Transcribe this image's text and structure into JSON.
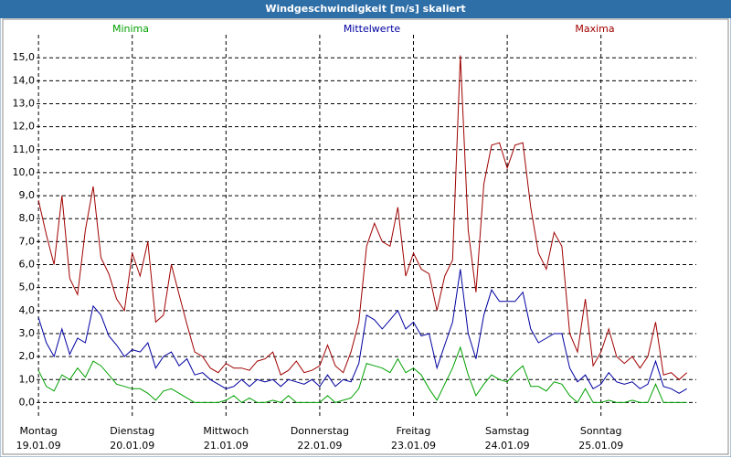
{
  "chart_data": {
    "type": "line",
    "title": "Windgeschwindigkeit [m/s] skaliert",
    "x": [
      0,
      2,
      4,
      6,
      8,
      10,
      12,
      14,
      16,
      18,
      20,
      22,
      24,
      26,
      28,
      30,
      32,
      34,
      36,
      38,
      40,
      42,
      44,
      46,
      48,
      50,
      52,
      54,
      56,
      58,
      60,
      62,
      64,
      66,
      68,
      70,
      72,
      74,
      76,
      78,
      80,
      82,
      84,
      86,
      88,
      90,
      92,
      94,
      96,
      98,
      100,
      102,
      104,
      106,
      108,
      110,
      112,
      114,
      116,
      118,
      120,
      122,
      124,
      126,
      128,
      130,
      132,
      134,
      136,
      138,
      140,
      142,
      144,
      146,
      148,
      150,
      152,
      154,
      156,
      158,
      160,
      162,
      164,
      166
    ],
    "series": [
      {
        "name": "Minima",
        "color": "#00a000",
        "values": [
          1.4,
          0.7,
          0.5,
          1.2,
          1.0,
          1.5,
          1.1,
          1.8,
          1.6,
          1.2,
          0.8,
          0.7,
          0.6,
          0.6,
          0.4,
          0.1,
          0.5,
          0.6,
          0.4,
          0.2,
          0.0,
          0.0,
          0.0,
          0.0,
          0.1,
          0.3,
          0.0,
          0.2,
          0.0,
          0.0,
          0.1,
          0.0,
          0.3,
          0.0,
          0.0,
          0.0,
          0.0,
          0.3,
          0.0,
          0.1,
          0.2,
          0.6,
          1.7,
          1.6,
          1.5,
          1.3,
          1.9,
          1.3,
          1.5,
          1.2,
          0.6,
          0.1,
          0.8,
          1.5,
          2.4,
          1.2,
          0.3,
          0.8,
          1.2,
          1.0,
          0.9,
          1.3,
          1.6,
          0.7,
          0.7,
          0.5,
          0.9,
          0.8,
          0.3,
          0.0,
          0.6,
          0.0,
          0.0,
          0.1,
          0.0,
          0.0,
          0.1,
          0.0,
          0.0,
          0.8,
          0.0,
          0.0,
          0.0,
          0.0
        ]
      },
      {
        "name": "Mittelwerte",
        "color": "#0000a0",
        "values": [
          3.7,
          2.6,
          2.0,
          3.2,
          2.1,
          2.8,
          2.6,
          4.2,
          3.8,
          2.9,
          2.5,
          2.0,
          2.3,
          2.2,
          2.6,
          1.5,
          2.0,
          2.2,
          1.6,
          1.9,
          1.2,
          1.3,
          1.0,
          0.8,
          0.6,
          0.7,
          1.0,
          0.7,
          1.0,
          0.9,
          1.0,
          0.7,
          1.0,
          0.9,
          0.8,
          1.0,
          0.7,
          1.2,
          0.7,
          1.0,
          0.9,
          1.7,
          3.8,
          3.6,
          3.2,
          3.6,
          4.0,
          3.2,
          3.5,
          2.9,
          3.0,
          1.5,
          2.5,
          3.5,
          5.8,
          3.0,
          1.9,
          3.8,
          4.9,
          4.4,
          4.4,
          4.4,
          4.8,
          3.2,
          2.6,
          2.8,
          3.0,
          3.0,
          1.5,
          0.9,
          1.2,
          0.6,
          0.8,
          1.3,
          0.9,
          0.8,
          0.9,
          0.6,
          0.8,
          1.8,
          0.7,
          0.6,
          0.4,
          0.6
        ]
      },
      {
        "name": "Maxima",
        "color": "#a00000",
        "values": [
          8.8,
          7.3,
          6.0,
          9.0,
          5.4,
          4.7,
          7.5,
          9.4,
          6.3,
          5.6,
          4.5,
          4.0,
          6.5,
          5.5,
          7.0,
          3.5,
          3.8,
          6.0,
          4.7,
          3.4,
          2.2,
          2.0,
          1.5,
          1.3,
          1.7,
          1.5,
          1.5,
          1.4,
          1.8,
          1.9,
          2.2,
          1.2,
          1.4,
          1.8,
          1.3,
          1.4,
          1.6,
          2.5,
          1.6,
          1.3,
          2.2,
          3.5,
          6.8,
          7.8,
          7.0,
          6.8,
          8.5,
          5.5,
          6.5,
          5.8,
          5.6,
          4.0,
          5.5,
          6.2,
          15.1,
          7.5,
          4.8,
          9.5,
          11.2,
          11.3,
          10.2,
          11.2,
          11.3,
          8.5,
          6.5,
          5.8,
          7.4,
          6.8,
          3.0,
          2.2,
          4.5,
          1.6,
          2.2,
          3.2,
          2.0,
          1.7,
          2.0,
          1.5,
          2.0,
          3.5,
          1.2,
          1.3,
          1.0,
          1.3
        ]
      }
    ],
    "xlim": [
      -0.5,
      168.4
    ],
    "xticks": [
      {
        "value": 0,
        "label": "Montag",
        "date": "19.01.09"
      },
      {
        "value": 24,
        "label": "Dienstag",
        "date": "20.01.09"
      },
      {
        "value": 48,
        "label": "Mittwoch",
        "date": "21.01.09"
      },
      {
        "value": 72,
        "label": "Donnerstag",
        "date": "22.01.09"
      },
      {
        "value": 96,
        "label": "Freitag",
        "date": "23.01.09"
      },
      {
        "value": 120,
        "label": "Samstag",
        "date": "24.01.09"
      },
      {
        "value": 144,
        "label": "Sonntag",
        "date": "25.01.09"
      }
    ],
    "ylim": [
      -0.7,
      16.4
    ],
    "yticks": [
      {
        "value": 0,
        "label": "0,0"
      },
      {
        "value": 1,
        "label": "1,0"
      },
      {
        "value": 2,
        "label": "2,0"
      },
      {
        "value": 3,
        "label": "3,0"
      },
      {
        "value": 4,
        "label": "4,0"
      },
      {
        "value": 5,
        "label": "5,0"
      },
      {
        "value": 6,
        "label": "6,0"
      },
      {
        "value": 7,
        "label": "7,0"
      },
      {
        "value": 8,
        "label": "8,0"
      },
      {
        "value": 9,
        "label": "9,0"
      },
      {
        "value": 10,
        "label": "10,0"
      },
      {
        "value": 11,
        "label": "11,0"
      },
      {
        "value": 12,
        "label": "12,0"
      },
      {
        "value": 13,
        "label": "13,0"
      },
      {
        "value": 14,
        "label": "14,0"
      },
      {
        "value": 15,
        "label": "15,0"
      }
    ],
    "grid": true
  }
}
